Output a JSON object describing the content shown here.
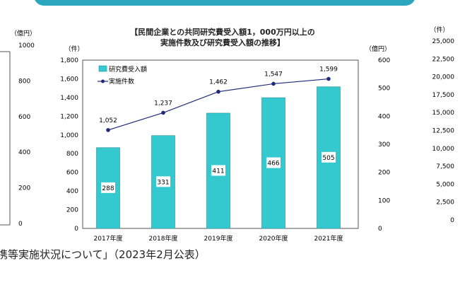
{
  "source_note": "携等実施状況について」（2023年2月公表）",
  "left_partial_axis": {
    "unit": "（億円）",
    "ticks": [
      "1000",
      "800",
      "600",
      "400",
      "200",
      "0"
    ]
  },
  "right_partial_axis": {
    "unit": "（件）",
    "ticks": [
      "25,000",
      "22,500",
      "20,000",
      "17,500",
      "15,000",
      "12,500",
      "10,000",
      "7,500",
      "5,000",
      "2,500",
      "0"
    ]
  },
  "colors": {
    "banner": "#2aa7bf",
    "bar": "#33c9cf",
    "line": "#1f2a7a"
  },
  "chart_data": {
    "type": "bar+line",
    "title_lines": [
      "【民間企業との共同研究費受入額1，000万円以上の",
      "実施件数及び研究費受入額の推移】"
    ],
    "categories": [
      "2017年度",
      "2018年度",
      "2019年度",
      "2020年度",
      "2021年度"
    ],
    "left_axis": {
      "unit": "（件）",
      "range": [
        0,
        1800
      ],
      "ticks": [
        "0",
        "200",
        "400",
        "600",
        "800",
        "1,000",
        "1,200",
        "1,400",
        "1,600",
        "1,800"
      ]
    },
    "right_axis": {
      "unit": "（億円）",
      "range": [
        0,
        600
      ],
      "ticks": [
        "0",
        "100",
        "200",
        "300",
        "400",
        "500",
        "600"
      ]
    },
    "series": [
      {
        "name": "研究費受入額",
        "type": "bar",
        "axis": "right",
        "values": [
          288,
          331,
          411,
          466,
          505
        ],
        "labels": [
          "288",
          "331",
          "411",
          "466",
          "505"
        ]
      },
      {
        "name": "実施件数",
        "type": "line",
        "axis": "left",
        "values": [
          1052,
          1237,
          1462,
          1547,
          1599
        ],
        "labels": [
          "1,052",
          "1,237",
          "1,462",
          "1,547",
          "1,599"
        ]
      }
    ],
    "legend": "top-left",
    "grid": false
  }
}
